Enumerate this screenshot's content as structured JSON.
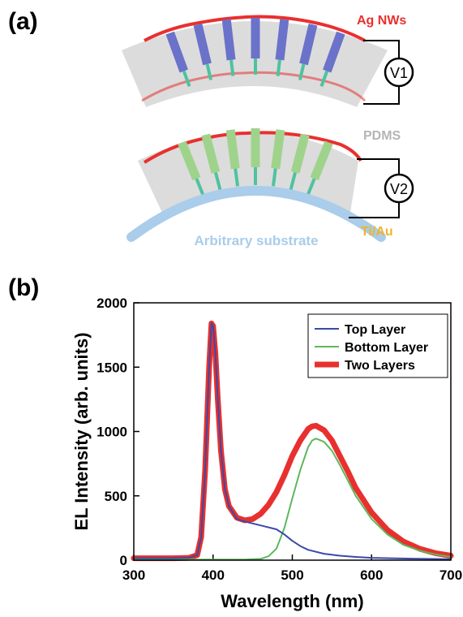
{
  "panel_a": {
    "label": "(a)",
    "labels": {
      "ag_nws": "Ag NWs",
      "pdms": "PDMS",
      "ti_au": "Ti/Au",
      "substrate": "Arbitrary substrate",
      "v1": "V1",
      "v2": "V2"
    },
    "colors": {
      "ag_nws": "#e8302e",
      "pdms": "#c8c8c8",
      "ti_au": "#f0b429",
      "substrate": "#a9cdea",
      "top_nanowire": "#6b72c9",
      "bottom_nanowire": "#9fd38c",
      "contact": "#4fc2a0"
    },
    "top_layer_nanowire_count": 7,
    "bottom_layer_nanowire_count": 7
  },
  "panel_b": {
    "label": "(b)"
  },
  "chart_data": {
    "type": "line",
    "title": "",
    "xlabel": "Wavelength (nm)",
    "ylabel": "EL Intensity (arb. units)",
    "xlim": [
      300,
      700
    ],
    "ylim": [
      0,
      2000
    ],
    "xticks": [
      300,
      400,
      500,
      600,
      700
    ],
    "yticks": [
      0,
      500,
      1000,
      1500,
      2000
    ],
    "grid": false,
    "legend_position": "top-right",
    "series": [
      {
        "name": "Top Layer",
        "color": "#3a4aa8",
        "x": [
          300,
          350,
          370,
          380,
          385,
          390,
          395,
          398,
          400,
          403,
          406,
          410,
          415,
          420,
          430,
          440,
          460,
          480,
          490,
          500,
          510,
          520,
          540,
          560,
          580,
          600,
          650,
          700
        ],
        "y": [
          15,
          15,
          18,
          40,
          180,
          700,
          1500,
          1840,
          1820,
          1600,
          1250,
          850,
          550,
          420,
          320,
          300,
          270,
          240,
          200,
          150,
          110,
          80,
          50,
          35,
          25,
          18,
          12,
          8
        ]
      },
      {
        "name": "Bottom Layer",
        "color": "#5cb85c",
        "x": [
          300,
          400,
          440,
          460,
          470,
          480,
          490,
          500,
          510,
          520,
          525,
          530,
          540,
          550,
          560,
          570,
          580,
          600,
          620,
          640,
          660,
          680,
          700
        ],
        "y": [
          5,
          5,
          5,
          10,
          30,
          90,
          250,
          480,
          700,
          880,
          930,
          945,
          920,
          850,
          740,
          620,
          500,
          320,
          200,
          120,
          75,
          45,
          25
        ]
      },
      {
        "name": "Two Layers",
        "color": "#e8302e",
        "x": [
          300,
          350,
          370,
          380,
          385,
          390,
          395,
          398,
          400,
          403,
          406,
          410,
          415,
          420,
          430,
          440,
          450,
          460,
          470,
          480,
          490,
          500,
          510,
          520,
          525,
          530,
          540,
          550,
          560,
          570,
          580,
          600,
          620,
          640,
          660,
          680,
          700
        ],
        "y": [
          15,
          15,
          18,
          40,
          180,
          700,
          1500,
          1840,
          1820,
          1600,
          1250,
          850,
          550,
          420,
          330,
          310,
          320,
          360,
          430,
          530,
          660,
          810,
          930,
          1020,
          1040,
          1045,
          1010,
          930,
          810,
          690,
          560,
          370,
          235,
          145,
          90,
          55,
          35
        ]
      }
    ]
  }
}
